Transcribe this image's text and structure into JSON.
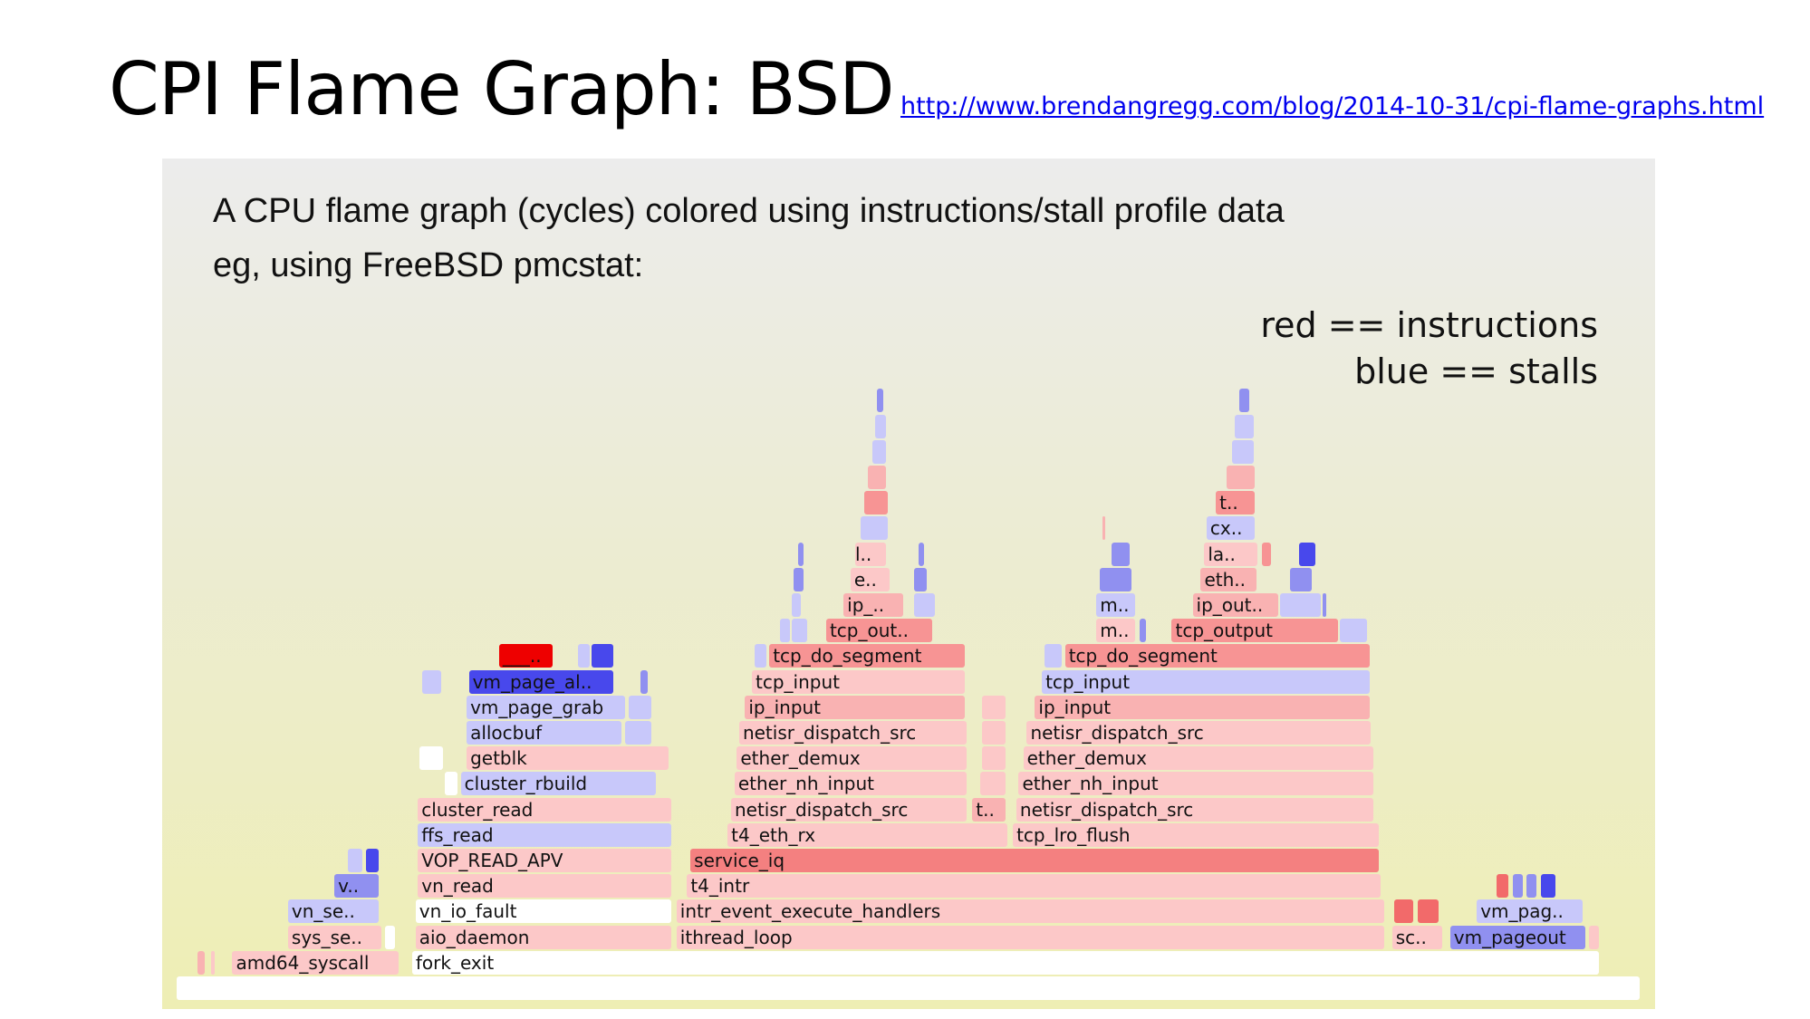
{
  "title": "CPI Flame Graph: BSD",
  "link": "http://www.brendangregg.com/blog/2014-10-31/cpi-flame-graphs.html",
  "panel": {
    "line1": "A CPU flame graph (cycles) colored using instructions/stall profile data",
    "line2": "eg, using FreeBSD pmcstat:",
    "legend_red": "red == instructions",
    "legend_blue": "blue == stalls"
  },
  "colors": {
    "w": "#ffffff",
    "p1": "#fcc8c8",
    "p2": "#f9b2b2",
    "p3": "#f79494",
    "r1": "#f48080",
    "r2": "#f26a6a",
    "r3": "#ee0000",
    "b1": "#c8c8fa",
    "b2": "#9090f0",
    "b3": "#4848ec"
  },
  "chart_data": {
    "type": "flamegraph",
    "total_samples": 1263,
    "frames": [
      [
        "",
        0,
        0,
        1263,
        "w"
      ],
      [
        "",
        1,
        18,
        26,
        "p2"
      ],
      [
        "",
        1,
        30,
        34,
        "p1"
      ],
      [
        "amd64_syscall",
        1,
        48,
        193,
        "p1"
      ],
      [
        "fork_exit",
        1,
        203,
        1228,
        "w"
      ],
      [
        "sys_se..",
        2,
        96,
        178,
        "p1"
      ],
      [
        "",
        2,
        180,
        190,
        "w"
      ],
      [
        "aio_daemon",
        2,
        206,
        428,
        "p1"
      ],
      [
        "ithread_loop",
        2,
        431,
        1043,
        "p1"
      ],
      [
        "sc..",
        2,
        1048,
        1093,
        "p1"
      ],
      [
        "vm_pageout",
        2,
        1098,
        1216,
        "b2"
      ],
      [
        "",
        2,
        1218,
        1228,
        "p1"
      ],
      [
        "vn_se..",
        3,
        96,
        176,
        "b1"
      ],
      [
        "vn_io_fault",
        3,
        206,
        428,
        "w"
      ],
      [
        "intr_event_execute_handlers",
        3,
        431,
        1043,
        "p1"
      ],
      [
        "",
        3,
        1050,
        1068,
        "r2"
      ],
      [
        "",
        3,
        1070,
        1090,
        "r2"
      ],
      [
        "vm_pag..",
        3,
        1121,
        1214,
        "b1"
      ],
      [
        "v..",
        4,
        136,
        176,
        "b2"
      ],
      [
        "vn_read",
        4,
        208,
        428,
        "p1"
      ],
      [
        "t4_intr",
        4,
        440,
        1040,
        "p1"
      ],
      [
        "",
        4,
        1138,
        1150,
        "r2"
      ],
      [
        "",
        4,
        1152,
        1162,
        "b2"
      ],
      [
        "",
        4,
        1164,
        1174,
        "b2"
      ],
      [
        "",
        4,
        1176,
        1190,
        "b3"
      ],
      [
        "",
        5,
        148,
        162,
        "b1"
      ],
      [
        "",
        5,
        163,
        176,
        "b3"
      ],
      [
        "VOP_READ_APV",
        5,
        208,
        428,
        "p1"
      ],
      [
        "service_iq",
        5,
        443,
        1038,
        "r1"
      ],
      [
        "ffs_read",
        6,
        208,
        428,
        "b1"
      ],
      [
        "t4_eth_rx",
        6,
        475,
        718,
        "p1"
      ],
      [
        "tcp_lro_flush",
        6,
        721,
        1038,
        "p1"
      ],
      [
        "cluster_read",
        7,
        208,
        428,
        "p1"
      ],
      [
        "netisr_dispatch_src",
        7,
        478,
        683,
        "p1"
      ],
      [
        "t..",
        7,
        686,
        716,
        "p2"
      ],
      [
        "netisr_dispatch_src",
        7,
        724,
        1033,
        "p1"
      ],
      [
        "",
        8,
        231,
        244,
        "w"
      ],
      [
        "cluster_rbuild",
        8,
        245,
        415,
        "b1"
      ],
      [
        "ether_nh_input",
        8,
        481,
        683,
        "p1"
      ],
      [
        "",
        8,
        693,
        716,
        "p1"
      ],
      [
        "ether_nh_input",
        8,
        726,
        1033,
        "p1"
      ],
      [
        "",
        9,
        209,
        231,
        "w"
      ],
      [
        "getblk",
        9,
        250,
        426,
        "p1"
      ],
      [
        "ether_demux",
        9,
        483,
        683,
        "p1"
      ],
      [
        "",
        9,
        694,
        716,
        "p1"
      ],
      [
        "ether_demux",
        9,
        730,
        1033,
        "p1"
      ],
      [
        "allocbuf",
        10,
        250,
        385,
        "b1"
      ],
      [
        "",
        10,
        387,
        411,
        "b1"
      ],
      [
        "netisr_dispatch_src",
        10,
        485,
        683,
        "p1"
      ],
      [
        "",
        10,
        694,
        716,
        "p1"
      ],
      [
        "netisr_dispatch_src",
        10,
        733,
        1031,
        "p1"
      ],
      [
        "vm_page_grab",
        11,
        250,
        388,
        "b1"
      ],
      [
        "",
        11,
        390,
        411,
        "b1"
      ],
      [
        "ip_input",
        11,
        490,
        681,
        "p2"
      ],
      [
        "",
        11,
        694,
        716,
        "p1"
      ],
      [
        "ip_input",
        11,
        740,
        1030,
        "p2"
      ],
      [
        "",
        12,
        212,
        230,
        "b1"
      ],
      [
        "vm_page_al..",
        12,
        252,
        378,
        "b3"
      ],
      [
        "",
        12,
        400,
        408,
        "b2"
      ],
      [
        "tcp_input",
        12,
        496,
        681,
        "p1"
      ],
      [
        "tcp_input",
        12,
        746,
        1030,
        "b1"
      ],
      [
        "___..",
        13,
        278,
        326,
        "r3"
      ],
      [
        "",
        13,
        346,
        358,
        "b1"
      ],
      [
        "",
        13,
        358,
        378,
        "b3"
      ],
      [
        "",
        13,
        498,
        510,
        "b1"
      ],
      [
        "tcp_do_segment",
        13,
        511,
        681,
        "p3"
      ],
      [
        "",
        13,
        748,
        765,
        "b1"
      ],
      [
        "tcp_do_segment",
        13,
        766,
        1030,
        "p3"
      ],
      [
        "",
        14,
        520,
        530,
        "b1"
      ],
      [
        "",
        14,
        530,
        545,
        "b1"
      ],
      [
        "tcp_out..",
        14,
        560,
        653,
        "p3"
      ],
      [
        "m..",
        14,
        793,
        828,
        "p1"
      ],
      [
        "",
        14,
        830,
        837,
        "b2"
      ],
      [
        "tcp_output",
        14,
        858,
        1003,
        "p3"
      ],
      [
        "",
        14,
        1003,
        1028,
        "b1"
      ],
      [
        "",
        15,
        530,
        540,
        "b1"
      ],
      [
        "ip_..",
        15,
        575,
        628,
        "p2"
      ],
      [
        "",
        15,
        636,
        655,
        "b1"
      ],
      [
        "m..",
        15,
        793,
        828,
        "b1"
      ],
      [
        "ip_out..",
        15,
        876,
        951,
        "p2"
      ],
      [
        "",
        15,
        951,
        988,
        "b1"
      ],
      [
        "",
        15,
        988,
        993,
        "b2"
      ],
      [
        "",
        16,
        532,
        542,
        "b2"
      ],
      [
        "e..",
        16,
        581,
        616,
        "p1"
      ],
      [
        "",
        16,
        636,
        648,
        "b2"
      ],
      [
        "",
        16,
        796,
        825,
        "b2"
      ],
      [
        "eth..",
        16,
        883,
        933,
        "p2"
      ],
      [
        "",
        16,
        960,
        980,
        "b2"
      ],
      [
        "",
        17,
        536,
        542,
        "b2"
      ],
      [
        "l..",
        17,
        585,
        613,
        "p1"
      ],
      [
        "",
        17,
        640,
        646,
        "b2"
      ],
      [
        "",
        17,
        806,
        823,
        "b2"
      ],
      [
        "la..",
        17,
        886,
        933,
        "p1"
      ],
      [
        "",
        17,
        936,
        945,
        "p3"
      ],
      [
        "",
        17,
        968,
        983,
        "b3"
      ],
      [
        "",
        18,
        590,
        615,
        "b1"
      ],
      [
        "",
        18,
        798,
        802,
        "p2"
      ],
      [
        "cx..",
        18,
        888,
        931,
        "b1"
      ],
      [
        "",
        19,
        593,
        615,
        "p3"
      ],
      [
        "t..",
        19,
        896,
        931,
        "p3"
      ],
      [
        "",
        20,
        596,
        613,
        "p2"
      ],
      [
        "",
        20,
        905,
        931,
        "p2"
      ],
      [
        "",
        21,
        600,
        613,
        "b1"
      ],
      [
        "",
        21,
        910,
        930,
        "b1"
      ],
      [
        "",
        22,
        602,
        613,
        "b1"
      ],
      [
        "",
        22,
        912,
        930,
        "b1"
      ],
      [
        "",
        23,
        604,
        611,
        "b2"
      ],
      [
        "",
        23,
        916,
        926,
        "b2"
      ]
    ]
  }
}
